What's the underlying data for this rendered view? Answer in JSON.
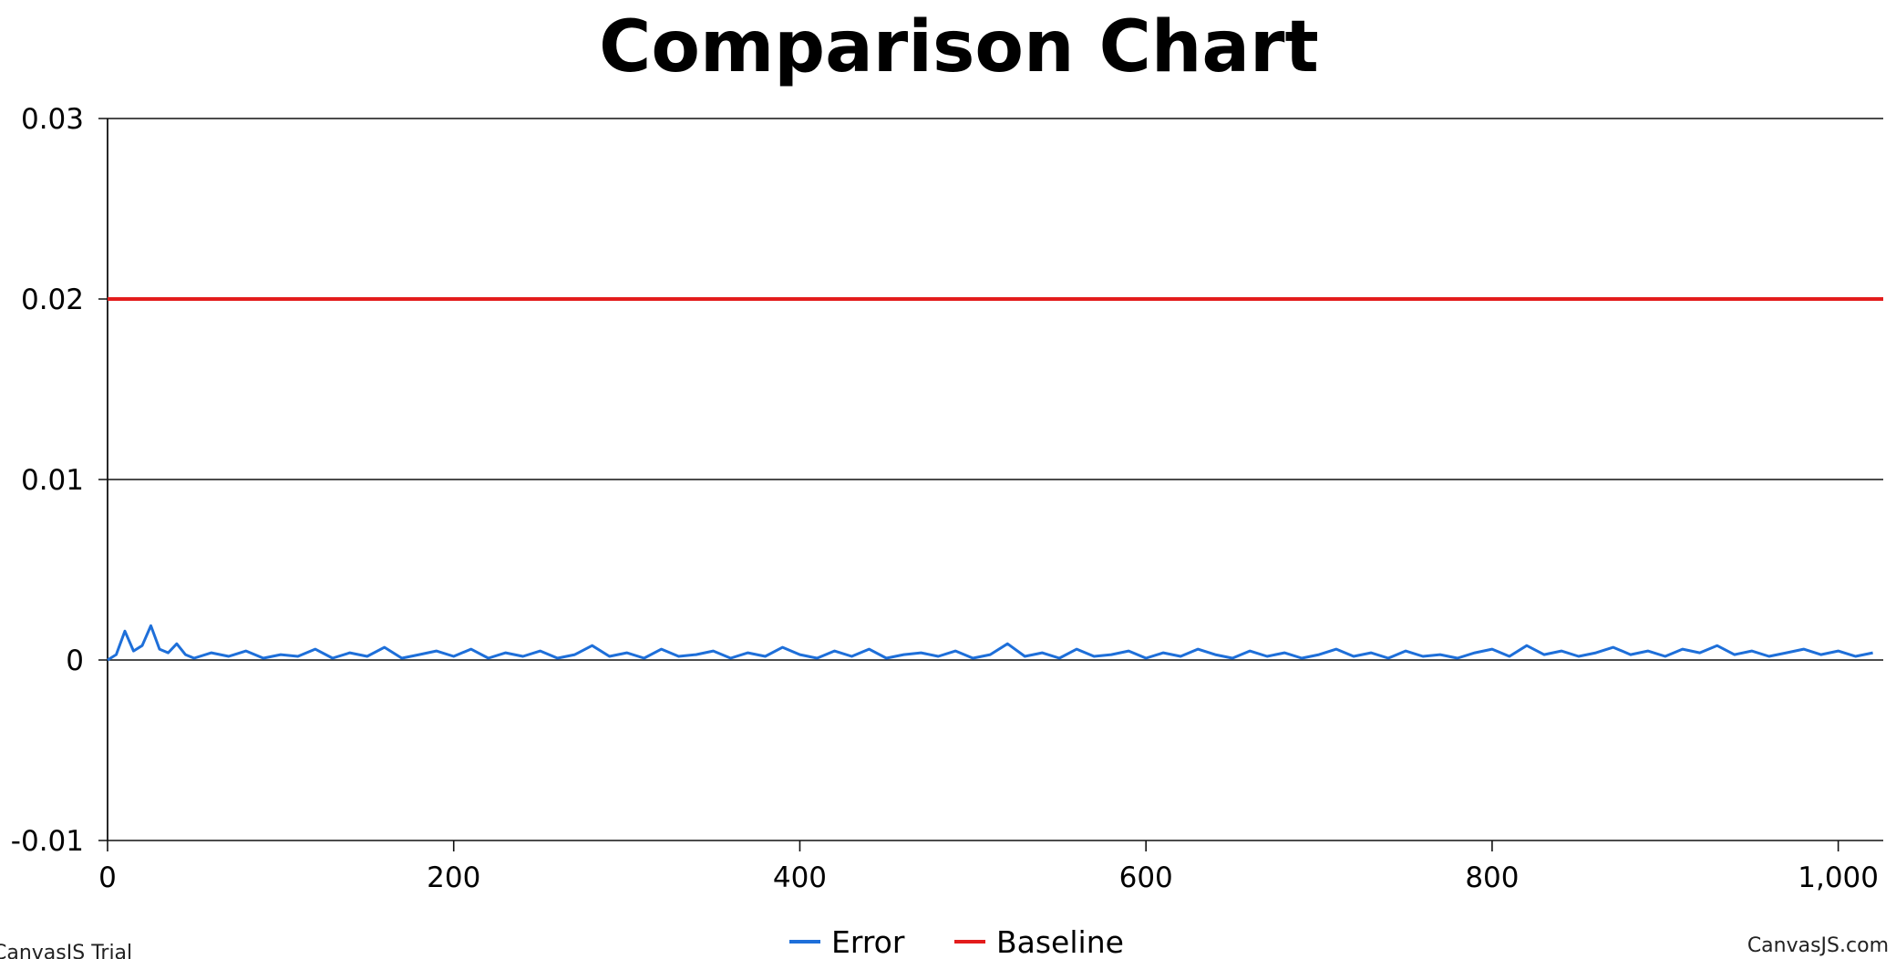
{
  "chart_data": {
    "type": "line",
    "title": "Comparison Chart",
    "xlabel": "",
    "ylabel": "",
    "xlim": [
      0,
      1026
    ],
    "ylim": [
      -0.01,
      0.03
    ],
    "x_ticks": [
      0,
      200,
      400,
      600,
      800,
      1000
    ],
    "x_tick_labels": [
      "0",
      "200",
      "400",
      "600",
      "800",
      "1,000"
    ],
    "y_ticks": [
      -0.01,
      0,
      0.01,
      0.02,
      0.03
    ],
    "y_tick_labels": [
      "-0.01",
      "0",
      "0.01",
      "0.02",
      "0.03"
    ],
    "grid": "horizontal",
    "legend": "bottom-center",
    "series": [
      {
        "name": "Error",
        "color": "#1e6fd9",
        "x": [
          0,
          5,
          10,
          15,
          20,
          25,
          30,
          35,
          40,
          45,
          50,
          60,
          70,
          80,
          90,
          100,
          110,
          120,
          130,
          140,
          150,
          160,
          170,
          180,
          190,
          200,
          210,
          220,
          230,
          240,
          250,
          260,
          270,
          280,
          290,
          300,
          310,
          320,
          330,
          340,
          350,
          360,
          370,
          380,
          390,
          400,
          410,
          420,
          430,
          440,
          450,
          460,
          470,
          480,
          490,
          500,
          510,
          520,
          530,
          540,
          550,
          560,
          570,
          580,
          590,
          600,
          610,
          620,
          630,
          640,
          650,
          660,
          670,
          680,
          690,
          700,
          710,
          720,
          730,
          740,
          750,
          760,
          770,
          780,
          790,
          800,
          810,
          820,
          830,
          840,
          850,
          860,
          870,
          880,
          890,
          900,
          910,
          920,
          930,
          940,
          950,
          960,
          970,
          980,
          990,
          1000,
          1010,
          1020
        ],
        "values": [
          0,
          0.0003,
          0.0016,
          0.0005,
          0.0008,
          0.0019,
          0.0006,
          0.0004,
          0.0009,
          0.0003,
          0.0001,
          0.0004,
          0.0002,
          0.0005,
          0.0001,
          0.0003,
          0.0002,
          0.0006,
          0.0001,
          0.0004,
          0.0002,
          0.0007,
          0.0001,
          0.0003,
          0.0005,
          0.0002,
          0.0006,
          0.0001,
          0.0004,
          0.0002,
          0.0005,
          0.0001,
          0.0003,
          0.0008,
          0.0002,
          0.0004,
          0.0001,
          0.0006,
          0.0002,
          0.0003,
          0.0005,
          0.0001,
          0.0004,
          0.0002,
          0.0007,
          0.0003,
          0.0001,
          0.0005,
          0.0002,
          0.0006,
          0.0001,
          0.0003,
          0.0004,
          0.0002,
          0.0005,
          0.0001,
          0.0003,
          0.0009,
          0.0002,
          0.0004,
          0.0001,
          0.0006,
          0.0002,
          0.0003,
          0.0005,
          0.0001,
          0.0004,
          0.0002,
          0.0006,
          0.0003,
          0.0001,
          0.0005,
          0.0002,
          0.0004,
          0.0001,
          0.0003,
          0.0006,
          0.0002,
          0.0004,
          0.0001,
          0.0005,
          0.0002,
          0.0003,
          0.0001,
          0.0004,
          0.0006,
          0.0002,
          0.0008,
          0.0003,
          0.0005,
          0.0002,
          0.0004,
          0.0007,
          0.0003,
          0.0005,
          0.0002,
          0.0006,
          0.0004,
          0.0008,
          0.0003,
          0.0005,
          0.0002,
          0.0004,
          0.0006,
          0.0003,
          0.0005,
          0.0002,
          0.0004
        ]
      },
      {
        "name": "Baseline",
        "color": "#e31c1c",
        "x": [
          0,
          1026
        ],
        "values": [
          0.02,
          0.02
        ]
      }
    ]
  },
  "watermarks": {
    "left": "CanvasJS Trial",
    "right": "CanvasJS.com"
  }
}
